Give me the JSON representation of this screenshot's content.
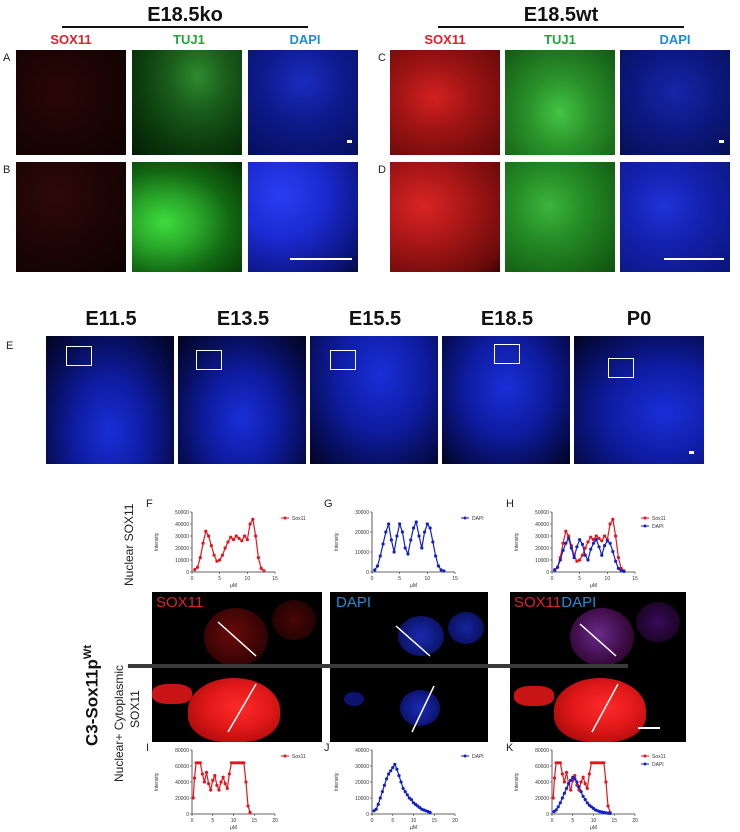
{
  "groups": {
    "ko": "E18.5ko",
    "wt": "E18.5wt"
  },
  "channels": {
    "sox11": "SOX11",
    "tuj1": "TUJ1",
    "dapi": "DAPI"
  },
  "panels": {
    "A": "A",
    "B": "B",
    "C": "C",
    "D": "D",
    "E": "E",
    "F": "F",
    "G": "G",
    "H": "H",
    "I": "I",
    "J": "J",
    "K": "K"
  },
  "stages": [
    "E11.5",
    "E13.5",
    "E15.5",
    "E18.5",
    "P0"
  ],
  "side_labels": {
    "nuclear": "Nuclear SOX11",
    "nuclear_cyto_1": "Nuclear+ Cytoplasmic",
    "nuclear_cyto_2": "SOX11",
    "genotype_main": "C3-Sox11p",
    "genotype_sup": "Wt"
  },
  "overlay_labels": {
    "sox11": "SOX11",
    "dapi": "DAPI"
  },
  "colors": {
    "sox11": "#e0202a",
    "tuj1": "#1ea83c",
    "dapi": "#1b8fd6",
    "plot_red": "#e8141c",
    "plot_blue": "#1420c8"
  },
  "chart_data": [
    {
      "panel": "F",
      "type": "line",
      "ylabel": "Intensity",
      "xlabel": "µM",
      "xticks": [
        0,
        5,
        10,
        15
      ],
      "yticks": [
        0,
        10000,
        20000,
        30000,
        40000,
        50000
      ],
      "xlim": [
        0,
        15
      ],
      "ylim": [
        0,
        50000
      ],
      "series": [
        {
          "name": "Sox11",
          "color": "red",
          "x": [
            0.5,
            1,
            1.5,
            2,
            2.5,
            3,
            3.5,
            4,
            4.5,
            5,
            5.5,
            6,
            6.5,
            7,
            7.5,
            8,
            8.5,
            9,
            9.5,
            10,
            10.5,
            11,
            11.5,
            12,
            12.5,
            13
          ],
          "y": [
            2000,
            4000,
            12000,
            24000,
            34000,
            30000,
            22000,
            14000,
            9000,
            10000,
            14000,
            20000,
            25000,
            29000,
            27000,
            30000,
            28000,
            26000,
            30000,
            27000,
            40000,
            44000,
            30000,
            12000,
            3000,
            1000
          ]
        }
      ]
    },
    {
      "panel": "G",
      "type": "line",
      "ylabel": "Intensity",
      "xlabel": "µM",
      "xticks": [
        0,
        5,
        10,
        15
      ],
      "yticks": [
        0,
        10000,
        20000,
        30000
      ],
      "xlim": [
        0,
        15
      ],
      "ylim": [
        0,
        30000
      ],
      "series": [
        {
          "name": "DAPI",
          "color": "blue",
          "x": [
            0.5,
            1,
            1.5,
            2,
            2.5,
            3,
            3.5,
            4,
            4.5,
            5,
            5.5,
            6,
            6.5,
            7,
            7.5,
            8,
            8.5,
            9,
            9.5,
            10,
            10.5,
            11,
            11.5,
            12,
            12.5,
            13
          ],
          "y": [
            1000,
            3000,
            8000,
            14000,
            20000,
            24000,
            16000,
            10000,
            18000,
            24000,
            20000,
            12000,
            9000,
            16000,
            22000,
            25000,
            18000,
            12000,
            20000,
            24000,
            22000,
            15000,
            8000,
            3000,
            1000,
            500
          ]
        }
      ]
    },
    {
      "panel": "H",
      "type": "line",
      "ylabel": "Intensity",
      "xlabel": "µM",
      "xticks": [
        0,
        5,
        10,
        15
      ],
      "yticks": [
        0,
        10000,
        20000,
        30000,
        40000,
        50000
      ],
      "xlim": [
        0,
        15
      ],
      "ylim": [
        0,
        50000
      ],
      "series": [
        {
          "name": "Sox11",
          "color": "red",
          "x": [
            0.5,
            1,
            1.5,
            2,
            2.5,
            3,
            3.5,
            4,
            4.5,
            5,
            5.5,
            6,
            6.5,
            7,
            7.5,
            8,
            8.5,
            9,
            9.5,
            10,
            10.5,
            11,
            11.5,
            12,
            12.5,
            13
          ],
          "y": [
            2000,
            4000,
            12000,
            24000,
            34000,
            30000,
            22000,
            14000,
            9000,
            10000,
            14000,
            20000,
            25000,
            29000,
            27000,
            30000,
            28000,
            26000,
            30000,
            27000,
            40000,
            44000,
            30000,
            12000,
            3000,
            1000
          ]
        },
        {
          "name": "DAPI",
          "color": "blue",
          "x": [
            0.5,
            1,
            1.5,
            2,
            2.5,
            3,
            3.5,
            4,
            4.5,
            5,
            5.5,
            6,
            6.5,
            7,
            7.5,
            8,
            8.5,
            9,
            9.5,
            10,
            10.5,
            11,
            11.5,
            12,
            12.5,
            13
          ],
          "y": [
            1500,
            4000,
            10000,
            18000,
            24000,
            28000,
            20000,
            12000,
            21000,
            27000,
            23000,
            14000,
            10000,
            19000,
            24000,
            27000,
            21000,
            14000,
            22000,
            26000,
            24000,
            17000,
            9000,
            3000,
            1000,
            500
          ]
        }
      ]
    },
    {
      "panel": "I",
      "type": "line",
      "ylabel": "Intensity",
      "xlabel": "µM",
      "xticks": [
        0,
        5,
        10,
        15,
        20
      ],
      "yticks": [
        0,
        20000,
        40000,
        60000,
        80000
      ],
      "xlim": [
        0,
        20
      ],
      "ylim": [
        0,
        80000
      ],
      "series": [
        {
          "name": "Sox11",
          "color": "red",
          "x": [
            0.3,
            0.6,
            1,
            1.5,
            2,
            2.5,
            3,
            3.5,
            4,
            4.5,
            5,
            5.5,
            6,
            6.5,
            7,
            7.5,
            8,
            8.5,
            9,
            9.5,
            10,
            10.5,
            11,
            11.5,
            12,
            12.5,
            13,
            13.5,
            14
          ],
          "y": [
            20000,
            45000,
            64000,
            64000,
            64000,
            50000,
            40000,
            52000,
            38000,
            30000,
            42000,
            48000,
            36000,
            30000,
            40000,
            46000,
            38000,
            32000,
            50000,
            64000,
            64000,
            64000,
            64000,
            64000,
            64000,
            64000,
            40000,
            10000,
            2000
          ]
        }
      ]
    },
    {
      "panel": "J",
      "type": "line",
      "ylabel": "Intensity",
      "xlabel": "µM",
      "xticks": [
        0,
        5,
        10,
        15,
        20
      ],
      "yticks": [
        0,
        10000,
        20000,
        30000,
        40000
      ],
      "xlim": [
        0,
        20
      ],
      "ylim": [
        0,
        40000
      ],
      "series": [
        {
          "name": "DAPI",
          "color": "blue",
          "x": [
            0.5,
            1,
            1.5,
            2,
            2.5,
            3,
            3.5,
            4,
            4.5,
            5,
            5.5,
            6,
            6.5,
            7,
            7.5,
            8,
            8.5,
            9,
            9.5,
            10,
            10.5,
            11,
            11.5,
            12,
            12.5,
            13,
            13.5,
            14
          ],
          "y": [
            2000,
            3000,
            6000,
            10000,
            14000,
            18000,
            22000,
            25000,
            27000,
            29000,
            31000,
            28000,
            24000,
            20000,
            16000,
            14000,
            12000,
            10000,
            9000,
            7000,
            6000,
            5000,
            4000,
            3000,
            2500,
            2000,
            1500,
            1000
          ]
        }
      ]
    },
    {
      "panel": "K",
      "type": "line",
      "ylabel": "Intensity",
      "xlabel": "µM",
      "xticks": [
        0,
        5,
        10,
        15,
        20
      ],
      "yticks": [
        0,
        20000,
        40000,
        60000,
        80000
      ],
      "xlim": [
        0,
        20
      ],
      "ylim": [
        0,
        80000
      ],
      "series": [
        {
          "name": "Sox11",
          "color": "red",
          "x": [
            0.3,
            0.6,
            1,
            1.5,
            2,
            2.5,
            3,
            3.5,
            4,
            4.5,
            5,
            5.5,
            6,
            6.5,
            7,
            7.5,
            8,
            8.5,
            9,
            9.5,
            10,
            10.5,
            11,
            11.5,
            12,
            12.5,
            13,
            13.5,
            14
          ],
          "y": [
            20000,
            45000,
            64000,
            64000,
            64000,
            50000,
            40000,
            52000,
            38000,
            30000,
            42000,
            48000,
            36000,
            30000,
            40000,
            46000,
            38000,
            32000,
            50000,
            64000,
            64000,
            64000,
            64000,
            64000,
            64000,
            64000,
            40000,
            10000,
            2000
          ]
        },
        {
          "name": "DAPI",
          "color": "blue",
          "x": [
            0.5,
            1,
            1.5,
            2,
            2.5,
            3,
            3.5,
            4,
            4.5,
            5,
            5.5,
            6,
            6.5,
            7,
            7.5,
            8,
            8.5,
            9,
            9.5,
            10,
            10.5,
            11,
            11.5,
            12,
            12.5,
            13,
            13.5,
            14
          ],
          "y": [
            3000,
            5000,
            9000,
            14000,
            20000,
            26000,
            32000,
            38000,
            42000,
            46000,
            44000,
            40000,
            34000,
            28000,
            22000,
            18000,
            14000,
            11000,
            9000,
            7000,
            5000,
            4000,
            3000,
            2500,
            2000,
            1500,
            1000,
            800
          ]
        }
      ]
    }
  ]
}
